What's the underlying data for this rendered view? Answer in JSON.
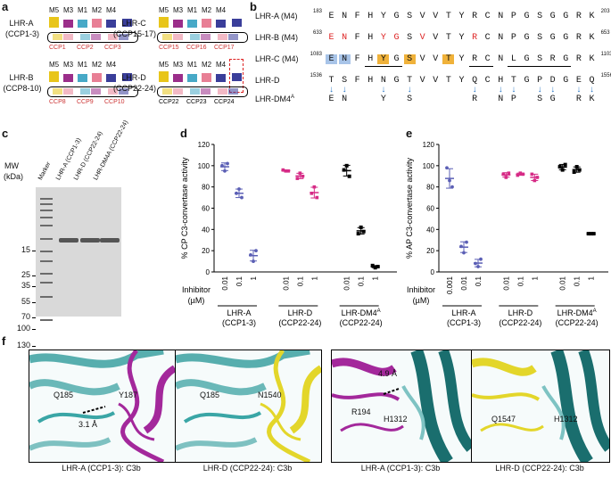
{
  "panels": {
    "a": "a",
    "b": "b",
    "c": "c",
    "d": "d",
    "e": "e",
    "f": "f"
  },
  "domains": {
    "modules_4": [
      "M5",
      "M3",
      "M1",
      "M2",
      "M4"
    ],
    "lhr_a": {
      "name": "LHR-A",
      "range": "(CCP1-3)",
      "ccps": [
        "CCP1",
        "CCP2",
        "CCP3"
      ]
    },
    "lhr_b": {
      "name": "LHR-B",
      "range": "(CCP8-10)",
      "ccps": [
        "CCP8",
        "CCP9",
        "CCP10"
      ]
    },
    "lhr_c": {
      "name": "LHR-C",
      "range": "(CCP15-17)",
      "ccps": [
        "CCP15",
        "CCP16",
        "CCP17"
      ]
    },
    "lhr_d": {
      "name": "LHR-D",
      "range": "(CCP22-24)",
      "ccps": [
        "CCP22",
        "CCP23",
        "CCP24"
      ]
    },
    "colors": {
      "m5": "#e8c51a",
      "m3": "#9b2e8a",
      "m1": "#47a9c7",
      "m2": "#e87f95",
      "m4": "#3a3e9a"
    }
  },
  "sequences": {
    "rows": [
      {
        "name": "LHR-A (M4)",
        "start": "183",
        "end": "203",
        "res": [
          "E",
          "N",
          "F",
          "H",
          "Y",
          "G",
          "S",
          "V",
          "V",
          "T",
          "Y",
          "R",
          "C",
          "N",
          "P",
          "G",
          "S",
          "G",
          "G",
          "R",
          "K"
        ],
        "red": []
      },
      {
        "name": "LHR-B (M4)",
        "start": "633",
        "end": "653",
        "res": [
          "E",
          "N",
          "F",
          "H",
          "Y",
          "G",
          "S",
          "V",
          "V",
          "T",
          "Y",
          "R",
          "C",
          "N",
          "P",
          "G",
          "S",
          "G",
          "G",
          "R",
          "K"
        ],
        "red": [
          0,
          1,
          4,
          5,
          7,
          11
        ]
      },
      {
        "name": "LHR-C (M4)",
        "start": "1083",
        "end": "1103",
        "res": [
          "E",
          "N",
          "F",
          "H",
          "Y",
          "G",
          "S",
          "V",
          "V",
          "T",
          "Y",
          "R",
          "C",
          "N",
          "L",
          "G",
          "S",
          "R",
          "G",
          "R",
          "K"
        ],
        "red": []
      },
      {
        "name": "LHR-D",
        "start": "1536",
        "end": "1556",
        "res": [
          "T",
          "S",
          "F",
          "H",
          "N",
          "G",
          "T",
          "V",
          "V",
          "T",
          "Y",
          "Q",
          "C",
          "H",
          "T",
          "G",
          "P",
          "D",
          "G",
          "E",
          "Q"
        ],
        "red": []
      }
    ],
    "dm4_name": "LHR-DM4",
    "dm4_sup": "A",
    "dm4_res": [
      {
        "i": 0,
        "r": "E"
      },
      {
        "i": 1,
        "r": "N"
      },
      {
        "i": 4,
        "r": "Y"
      },
      {
        "i": 6,
        "r": "S"
      },
      {
        "i": 11,
        "r": "R"
      },
      {
        "i": 13,
        "r": "N"
      },
      {
        "i": 14,
        "r": "P"
      },
      {
        "i": 16,
        "r": "S"
      },
      {
        "i": 17,
        "r": "G"
      },
      {
        "i": 19,
        "r": "R"
      },
      {
        "i": 20,
        "r": "K"
      }
    ]
  },
  "gel": {
    "mw_title": "MW",
    "mw_unit": "(kDa)",
    "mw": [
      "130",
      "100",
      "70",
      "55",
      "35",
      "25",
      "15"
    ],
    "lanes": [
      "Marker",
      "LHR-A (CCP1-3)",
      "LHR-D (CCP22-24)",
      "LHR-DM4A (CCP22-24)"
    ]
  },
  "chart_data": [
    {
      "type": "scatter",
      "title": "",
      "ylabel": "% CP C3-convertase activity",
      "ylim": [
        0,
        120
      ],
      "yticks": [
        0,
        20,
        40,
        60,
        80,
        100,
        120
      ],
      "inhibitor_label": "Inhibitor",
      "inhibitor_unit": "(µM)",
      "groups": [
        {
          "name": "LHR-A",
          "sub": "(CCP1-3)",
          "color": "#5b5fb5",
          "conc": [
            "0.01",
            "0.1",
            "1"
          ],
          "values": [
            [
              100,
              95,
              102
            ],
            [
              74,
              78,
              70
            ],
            [
              16,
              10,
              20
            ]
          ]
        },
        {
          "name": "LHR-D",
          "sub": "(CCP22-24)",
          "color": "#d62b86",
          "conc": [
            "0.01",
            "0.1",
            "1"
          ],
          "values": [
            [
              96,
              95,
              95
            ],
            [
              88,
              93,
              90
            ],
            [
              74,
              80,
              70
            ]
          ]
        },
        {
          "name": "LHR-DM4",
          "sup": "A",
          "sub": "(CCP22-24)",
          "color": "#000000",
          "conc": [
            "0.01",
            "0.1",
            "1"
          ],
          "values": [
            [
              96,
              100,
              90
            ],
            [
              36,
              42,
              38
            ],
            [
              6,
              4,
              5
            ]
          ]
        }
      ]
    },
    {
      "type": "scatter",
      "title": "",
      "ylabel": "% AP C3-convertase activity",
      "ylim": [
        0,
        120
      ],
      "yticks": [
        0,
        20,
        40,
        60,
        80,
        100,
        120
      ],
      "inhibitor_label": "Inhibitor",
      "inhibitor_unit": "(µM)",
      "groups": [
        {
          "name": "LHR-A",
          "sub": "(CCP1-3)",
          "color": "#5b5fb5",
          "conc": [
            "0.001",
            "0.01",
            "0.1"
          ],
          "values": [
            [
              98,
              86,
              80
            ],
            [
              24,
              18,
              28
            ],
            [
              8,
              5,
              12
            ]
          ]
        },
        {
          "name": "LHR-D",
          "sub": "(CCP22-24)",
          "color": "#d62b86",
          "conc": [
            "0.01",
            "0.1",
            "1"
          ],
          "values": [
            [
              92,
              89,
              93
            ],
            [
              91,
              93,
              92
            ],
            [
              92,
              86,
              89
            ]
          ]
        },
        {
          "name": "LHR-DM4",
          "sup": "A",
          "sub": "(CCP22-24)",
          "color": "#000000",
          "conc": [
            "0.01",
            "0.1",
            "1"
          ],
          "values": [
            [
              99,
              96,
              101
            ],
            [
              94,
              99,
              96
            ],
            [
              36,
              36,
              36
            ]
          ]
        }
      ]
    }
  ],
  "structures": {
    "p1": {
      "labels": [
        "Q185",
        "Y187"
      ],
      "dist": "3.1 Å",
      "caption": "LHR-A (CCP1-3): C3b"
    },
    "p2": {
      "labels": [
        "Q185",
        "N1540"
      ],
      "caption": "LHR-D (CCP22-24): C3b"
    },
    "p3": {
      "labels": [
        "R194",
        "H1312"
      ],
      "dist": "4.9 Å",
      "caption": "LHR-A (CCP1-3): C3b"
    },
    "p4": {
      "labels": [
        "Q1547",
        "H1312"
      ],
      "caption": "LHR-D (CCP22-24): C3b"
    }
  }
}
